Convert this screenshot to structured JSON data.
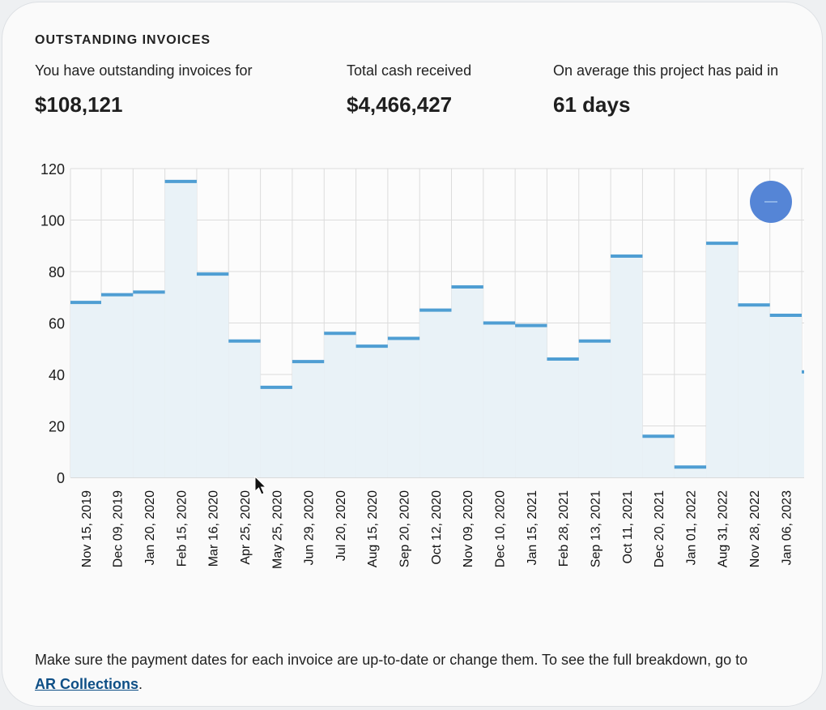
{
  "card": {
    "title": "OUTSTANDING INVOICES",
    "stats": [
      {
        "label": "You have outstanding invoices for",
        "value": "$108,121"
      },
      {
        "label": "Total cash received",
        "value": "$4,466,427"
      },
      {
        "label": "On average this project has paid in",
        "value": "61 days"
      }
    ],
    "footer": {
      "text": "Make sure the payment dates for each invoice are up-to-date or change them. To see the full breakdown, go to ",
      "link": "AR Collections",
      "suffix": "."
    },
    "zoom_control": {
      "icon": "minus-icon",
      "color": "#5585d6"
    }
  },
  "chart_data": {
    "type": "bar",
    "style": "step",
    "title": "",
    "xlabel": "",
    "ylabel": "",
    "ylim": [
      0,
      120
    ],
    "yticks": [
      0,
      20,
      40,
      60,
      80,
      100,
      120
    ],
    "grid": true,
    "categories": [
      "Nov 15, 2019",
      "Dec 09, 2019",
      "Jan 20, 2020",
      "Feb 15, 2020",
      "Mar 16, 2020",
      "Apr 25, 2020",
      "May 25, 2020",
      "Jun 29, 2020",
      "Jul 20, 2020",
      "Aug 15, 2020",
      "Sep 20, 2020",
      "Oct 12, 2020",
      "Nov 09, 2020",
      "Dec 10, 2020",
      "Jan 15, 2021",
      "Feb 28, 2021",
      "Sep 13, 2021",
      "Oct 11, 2021",
      "Dec 20, 2021",
      "Jan 01, 2022",
      "Aug 31, 2022",
      "Nov 28, 2022",
      "Jan 06, 2023"
    ],
    "values": [
      68,
      71,
      72,
      115,
      79,
      53,
      35,
      45,
      56,
      51,
      54,
      65,
      74,
      60,
      59,
      46,
      53,
      86,
      16,
      4,
      91,
      67,
      63
    ],
    "trailing_partial_value": 41,
    "colors": {
      "line": "#4f9ed3",
      "fill": "#e9f2f7",
      "grid": "#dcdcdc"
    }
  }
}
